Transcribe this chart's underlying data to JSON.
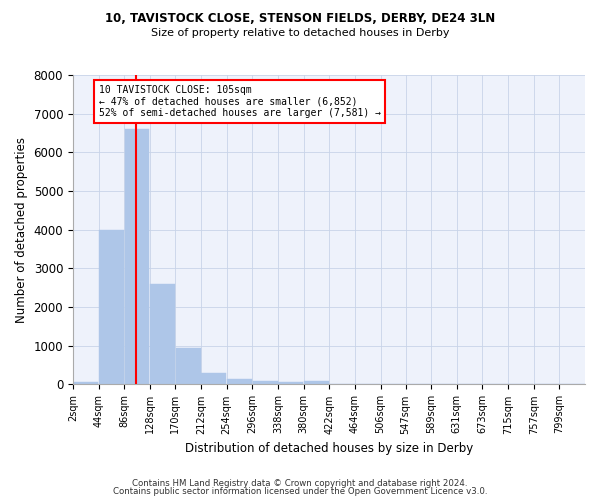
{
  "title_line1": "10, TAVISTOCK CLOSE, STENSON FIELDS, DERBY, DE24 3LN",
  "title_line2": "Size of property relative to detached houses in Derby",
  "xlabel": "Distribution of detached houses by size in Derby",
  "ylabel": "Number of detached properties",
  "bar_color": "#aec6e8",
  "bar_edgecolor": "#aec6e8",
  "grid_color": "#c8d4e8",
  "background_color": "#eef2fb",
  "property_size_sqm": 105,
  "property_line_color": "red",
  "annotation_line1": "10 TAVISTOCK CLOSE: 105sqm",
  "annotation_line2": "← 47% of detached houses are smaller (6,852)",
  "annotation_line3": "52% of semi-detached houses are larger (7,581) →",
  "annotation_box_color": "white",
  "annotation_box_edgecolor": "red",
  "bin_edges": [
    2,
    44,
    86,
    128,
    170,
    212,
    254,
    296,
    338,
    380,
    422,
    464,
    506,
    547,
    589,
    631,
    673,
    715,
    757,
    799,
    841
  ],
  "bar_heights": [
    75,
    4000,
    6600,
    2600,
    950,
    300,
    150,
    100,
    70,
    100,
    0,
    0,
    0,
    0,
    0,
    0,
    0,
    0,
    0,
    0
  ],
  "ylim": [
    0,
    8000
  ],
  "yticks": [
    0,
    1000,
    2000,
    3000,
    4000,
    5000,
    6000,
    7000,
    8000
  ],
  "footnote1": "Contains HM Land Registry data © Crown copyright and database right 2024.",
  "footnote2": "Contains public sector information licensed under the Open Government Licence v3.0."
}
